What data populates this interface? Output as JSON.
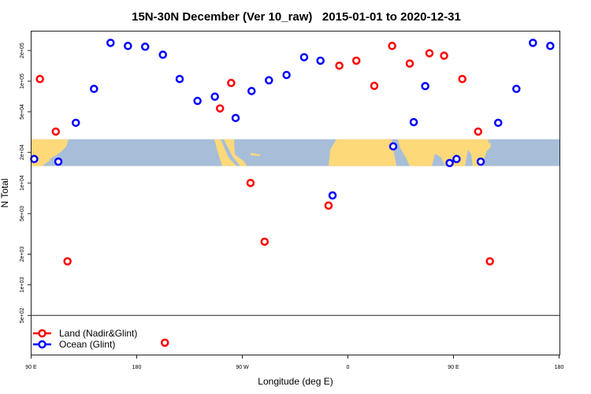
{
  "chart_data": {
    "type": "scatter",
    "title": "15N-30N December (Ver 10_raw)   2015-01-01 to 2020-12-31",
    "xlabel": "Longitude (deg E)",
    "ylabel": "N Total",
    "x_axis": {
      "range_deg_east": [
        90,
        540
      ],
      "tick_labels": [
        "90 E",
        "180",
        "90 W",
        "0",
        "90 E",
        "180"
      ],
      "tick_values_deg_east": [
        90,
        180,
        270,
        360,
        450,
        540
      ]
    },
    "y_axis": {
      "scale": "log",
      "range": [
        500,
        300000
      ],
      "tick_labels": [
        "2e+05",
        "1e+05",
        "5e+04",
        "2e+04",
        "1e+04",
        "5e+03",
        "2e+03",
        "1e+03",
        "5e+02"
      ],
      "tick_values": [
        200000,
        100000,
        50000,
        20000,
        10000,
        5000,
        2000,
        1000,
        500
      ]
    },
    "grid": false,
    "background_map": {
      "latitude_band": "15N-30N",
      "land_color": "#FED97A",
      "ocean_color": "#A7BED9"
    },
    "legend": {
      "placement": "bottom-left",
      "entries": [
        {
          "label": "Land (Nadir&Glint)",
          "color": "#FF0000"
        },
        {
          "label": "Ocean (Glint)",
          "color": "#0000FF"
        }
      ]
    },
    "series": [
      {
        "name": "Land (Nadir&Glint)",
        "color": "#FF0000",
        "points": [
          {
            "lon": 97.5,
            "n": 105000
          },
          {
            "lon": 111,
            "n": 32000
          },
          {
            "lon": 121,
            "n": 1700
          },
          {
            "lon": -156,
            "n": 270
          },
          {
            "lon": -109,
            "n": 54000
          },
          {
            "lon": -99.5,
            "n": 96000
          },
          {
            "lon": -83,
            "n": 10000
          },
          {
            "lon": -71,
            "n": 2650
          },
          {
            "lon": -16.5,
            "n": 6000
          },
          {
            "lon": -7.3,
            "n": 142000
          },
          {
            "lon": 7.2,
            "n": 159000
          },
          {
            "lon": 22.5,
            "n": 90000
          },
          {
            "lon": 37.7,
            "n": 222000
          },
          {
            "lon": 52.7,
            "n": 149000
          },
          {
            "lon": 69.5,
            "n": 188000
          },
          {
            "lon": 82,
            "n": 178000
          }
        ]
      },
      {
        "name": "Ocean (Glint)",
        "color": "#0000FF",
        "points": [
          {
            "lon": 92.6,
            "n": 17200
          },
          {
            "lon": 113.2,
            "n": 16200
          },
          {
            "lon": 128.1,
            "n": 39000
          },
          {
            "lon": 143.6,
            "n": 84000
          },
          {
            "lon": 157.7,
            "n": 238000
          },
          {
            "lon": 172.5,
            "n": 222000
          },
          {
            "lon": -172.8,
            "n": 218000
          },
          {
            "lon": -157.7,
            "n": 182000
          },
          {
            "lon": -143.4,
            "n": 105000
          },
          {
            "lon": -128.2,
            "n": 64000
          },
          {
            "lon": -113.4,
            "n": 70500
          },
          {
            "lon": -95.7,
            "n": 43500
          },
          {
            "lon": -82.1,
            "n": 80000
          },
          {
            "lon": -67.3,
            "n": 102000
          },
          {
            "lon": -52.3,
            "n": 115000
          },
          {
            "lon": -37.3,
            "n": 172000
          },
          {
            "lon": -23.4,
            "n": 159000
          },
          {
            "lon": -13.1,
            "n": 7550
          },
          {
            "lon": 38.6,
            "n": 22900
          },
          {
            "lon": 56.1,
            "n": 39600
          },
          {
            "lon": 65.9,
            "n": 89400
          },
          {
            "lon": 86.7,
            "n": 15700
          }
        ]
      }
    ]
  }
}
